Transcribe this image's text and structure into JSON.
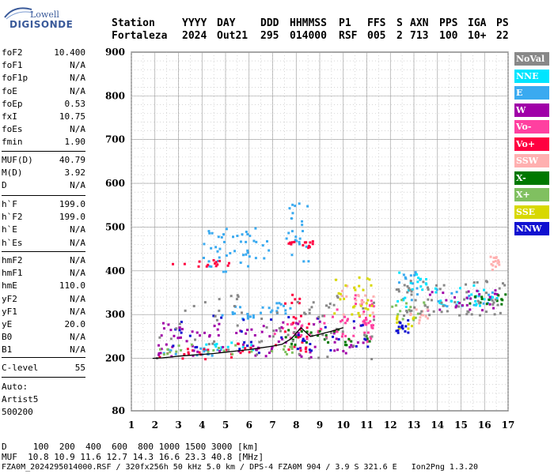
{
  "logo": {
    "top": "Lowell",
    "bottom": "DIGISONDE"
  },
  "header": {
    "labels": [
      "Station",
      "YYYY",
      "DAY",
      "DDD",
      "HHMMSS",
      "P1",
      "FFS",
      "S",
      "AXN",
      "PPS",
      "IGA",
      "PS"
    ],
    "values": [
      "Fortaleza",
      "2024",
      "Out21",
      "295",
      "014000",
      "RSF",
      "005",
      "2",
      "713",
      "100",
      "10+",
      "22"
    ]
  },
  "params_group1": [
    {
      "name": "foF2",
      "value": "10.400"
    },
    {
      "name": "foF1",
      "value": "N/A"
    },
    {
      "name": "foF1p",
      "value": "N/A"
    },
    {
      "name": "foE",
      "value": "N/A"
    },
    {
      "name": "foEp",
      "value": "0.53"
    },
    {
      "name": "fxI",
      "value": "10.75"
    },
    {
      "name": "foEs",
      "value": "N/A"
    },
    {
      "name": "fmin",
      "value": "1.90"
    }
  ],
  "params_group2": [
    {
      "name": "MUF(D)",
      "value": "40.79"
    },
    {
      "name": "M(D)",
      "value": "3.92"
    },
    {
      "name": "D",
      "value": "N/A"
    }
  ],
  "params_group3": [
    {
      "name": "h`F",
      "value": "199.0"
    },
    {
      "name": "h`F2",
      "value": "199.0"
    },
    {
      "name": "h`E",
      "value": "N/A"
    },
    {
      "name": "h`Es",
      "value": "N/A"
    }
  ],
  "params_group4": [
    {
      "name": "hmF2",
      "value": "N/A"
    },
    {
      "name": "hmF1",
      "value": "N/A"
    },
    {
      "name": "hmE",
      "value": "110.0"
    },
    {
      "name": "yF2",
      "value": "N/A"
    },
    {
      "name": "yF1",
      "value": "N/A"
    },
    {
      "name": "yE",
      "value": "20.0"
    },
    {
      "name": "B0",
      "value": "N/A"
    },
    {
      "name": "B1",
      "value": "N/A"
    }
  ],
  "params_group5": [
    {
      "name": "C-level",
      "value": "55"
    }
  ],
  "auto": {
    "line1": "Auto:",
    "line2": "Artist5",
    "line3": "500200"
  },
  "footer": {
    "d_row": "D     100  200  400  600  800 1000 1500 3000 [km]",
    "muf_row": "MUF  10.8 10.9 11.6 12.7 14.3 16.6 23.3 40.8 [MHz]",
    "file_row": "FZA0M_2024295014000.RSF / 320fx256h 50 kHz 5.0 km / DPS-4 FZA0M 904 / 3.9 S 321.6 E   Ion2Png 1.3.20"
  },
  "colors": {
    "NoVal": "#888888",
    "NNE": "#00e5ff",
    "E": "#3aaaf0",
    "W": "#a000a8",
    "Vo-": "#ff40a0",
    "Vo+": "#ff0040",
    "SSW": "#ffb0b0",
    "X-": "#007800",
    "X+": "#80c060",
    "SSE": "#d8d800",
    "NNW": "#1010d0",
    "trace": "#000000"
  },
  "chart_data": {
    "type": "scatter",
    "title": "",
    "xlabel": "",
    "ylabel": "",
    "xlim": [
      1,
      17
    ],
    "ylim": [
      80,
      900
    ],
    "x_ticks": [
      1,
      2,
      3,
      4,
      5,
      6,
      7,
      8,
      9,
      10,
      11,
      12,
      13,
      14,
      15,
      16,
      17
    ],
    "y_ticks": [
      80,
      200,
      300,
      400,
      500,
      600,
      700,
      800,
      900
    ],
    "grid": true,
    "legend_position": "right",
    "legend": [
      "NoVal",
      "NNE",
      "E",
      "W",
      "Vo-",
      "Vo+",
      "SSW",
      "X-",
      "X+",
      "SSE",
      "NNW"
    ],
    "series": [
      {
        "name": "E",
        "color_key": "E",
        "clusters": [
          {
            "x": [
              2.0,
              5.0
            ],
            "y": [
              205,
              225
            ]
          },
          {
            "x": [
              4.5,
              6.5
            ],
            "y": [
              290,
              325
            ]
          },
          {
            "x": [
              6.5,
              8.0
            ],
            "y": [
              305,
              330
            ]
          },
          {
            "x": [
              4.0,
              6.8
            ],
            "y": [
              400,
              500
            ]
          },
          {
            "x": [
              7.5,
              8.5
            ],
            "y": [
              420,
              560
            ]
          },
          {
            "x": [
              12.3,
              13.3
            ],
            "y": [
              330,
              400
            ]
          },
          {
            "x": [
              13.8,
              16.8
            ],
            "y": [
              320,
              360
            ]
          }
        ]
      },
      {
        "name": "NNE",
        "color_key": "NNE",
        "clusters": [
          {
            "x": [
              12.2,
              13.5
            ],
            "y": [
              320,
              400
            ]
          },
          {
            "x": [
              13.8,
              16.5
            ],
            "y": [
              320,
              370
            ]
          },
          {
            "x": [
              4.0,
              6.5
            ],
            "y": [
              220,
              240
            ]
          }
        ]
      },
      {
        "name": "Vo+",
        "color_key": "Vo+",
        "clusters": [
          {
            "x": [
              1.9,
              6.0
            ],
            "y": [
              200,
              225
            ]
          },
          {
            "x": [
              5.0,
              8.5
            ],
            "y": [
              215,
              240
            ]
          },
          {
            "x": [
              2.7,
              5.2
            ],
            "y": [
              412,
              428
            ]
          },
          {
            "x": [
              7.4,
              8.6
            ],
            "y": [
              250,
              350
            ]
          },
          {
            "x": [
              7.5,
              8.8
            ],
            "y": [
              455,
              470
            ]
          }
        ]
      },
      {
        "name": "Vo-",
        "color_key": "Vo-",
        "clusters": [
          {
            "x": [
              7.0,
              11.3
            ],
            "y": [
              240,
              300
            ]
          },
          {
            "x": [
              9.5,
              11.3
            ],
            "y": [
              250,
              350
            ]
          }
        ]
      },
      {
        "name": "W",
        "color_key": "W",
        "clusters": [
          {
            "x": [
              2.0,
              11.0
            ],
            "y": [
              205,
              290
            ]
          },
          {
            "x": [
              13.5,
              16.5
            ],
            "y": [
              310,
              360
            ]
          }
        ]
      },
      {
        "name": "SSW",
        "color_key": "SSW",
        "clusters": [
          {
            "x": [
              9.8,
              11.3
            ],
            "y": [
              300,
              370
            ]
          },
          {
            "x": [
              12.8,
              13.6
            ],
            "y": [
              280,
              320
            ]
          },
          {
            "x": [
              16.2,
              16.6
            ],
            "y": [
              405,
              440
            ]
          }
        ]
      },
      {
        "name": "X-",
        "color_key": "X-",
        "clusters": [
          {
            "x": [
              7.5,
              11.3
            ],
            "y": [
              230,
              270
            ]
          },
          {
            "x": [
              15.0,
              16.9
            ],
            "y": [
              325,
              350
            ]
          }
        ]
      },
      {
        "name": "X+",
        "color_key": "X+",
        "clusters": [
          {
            "x": [
              2.0,
              8.0
            ],
            "y": [
              210,
              235
            ]
          },
          {
            "x": [
              12.0,
              13.5
            ],
            "y": [
              290,
              340
            ]
          }
        ]
      },
      {
        "name": "SSE",
        "color_key": "SSE",
        "clusters": [
          {
            "x": [
              9.5,
              11.3
            ],
            "y": [
              300,
              390
            ]
          },
          {
            "x": [
              12.2,
              13.0
            ],
            "y": [
              270,
              300
            ]
          }
        ]
      },
      {
        "name": "NNW",
        "color_key": "NNW",
        "clusters": [
          {
            "x": [
              12.2,
              12.8
            ],
            "y": [
              260,
              290
            ]
          },
          {
            "x": [
              2.0,
              11.0
            ],
            "y": [
              215,
              300
            ]
          }
        ]
      },
      {
        "name": "NoVal",
        "color_key": "NoVal",
        "clusters": [
          {
            "x": [
              2.0,
              11.3
            ],
            "y": [
              200,
              360
            ]
          },
          {
            "x": [
              12.0,
              16.9
            ],
            "y": [
              300,
              380
            ]
          }
        ]
      }
    ],
    "trace": {
      "x": [
        1.9,
        2.3,
        2.7,
        3.0,
        3.5,
        4.0,
        4.5,
        5.0,
        5.5,
        6.0,
        6.5,
        7.0,
        7.4,
        7.8,
        8.2,
        8.6,
        9.0,
        9.5,
        10.0
      ],
      "y": [
        200,
        201,
        203,
        205,
        207,
        209,
        211,
        214,
        217,
        220,
        224,
        228,
        232,
        245,
        270,
        250,
        255,
        262,
        270
      ]
    }
  }
}
